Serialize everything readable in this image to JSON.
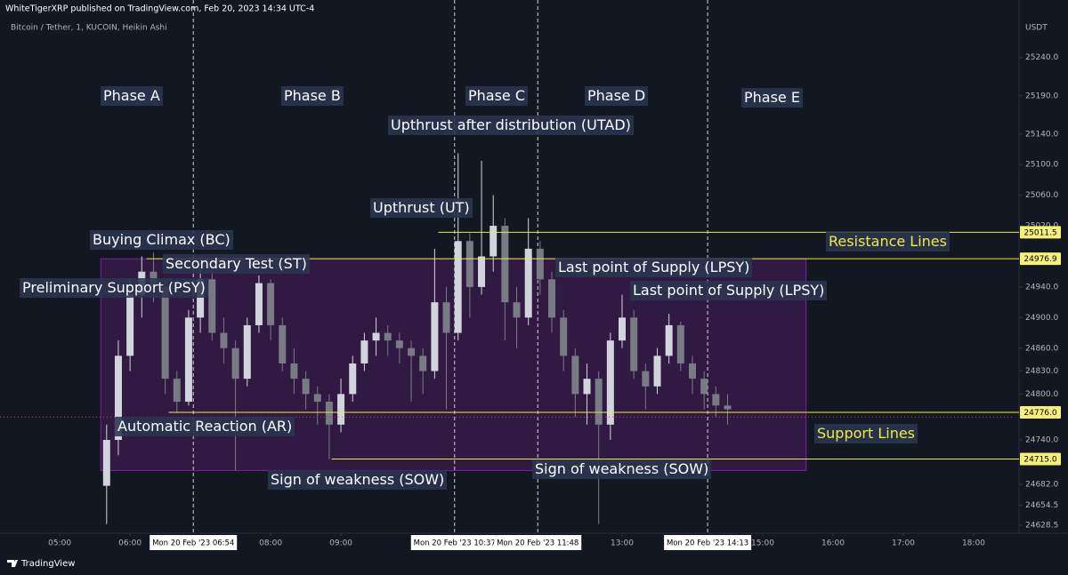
{
  "header": {
    "publisher": "WhiteTigerXRP published on TradingView.com, Feb 20, 2023 14:34 UTC-4",
    "brand": "TradingView"
  },
  "chart_data": {
    "type": "candlestick",
    "title": "Bitcoin / Tether, 1, KUCOIN, Heikin Ashi",
    "y_unit": "USDT",
    "up_color": "#d1d4dc",
    "down_color": "#787b86",
    "x": [
      "05:40",
      "05:50",
      "06:00",
      "06:10",
      "06:20",
      "06:30",
      "06:40",
      "06:50",
      "07:00",
      "07:10",
      "07:20",
      "07:30",
      "07:40",
      "07:50",
      "08:00",
      "08:10",
      "08:20",
      "08:30",
      "08:40",
      "08:50",
      "09:00",
      "09:10",
      "09:20",
      "09:30",
      "09:40",
      "09:50",
      "10:00",
      "10:10",
      "10:20",
      "10:30",
      "10:40",
      "10:50",
      "11:00",
      "11:10",
      "11:20",
      "11:30",
      "11:40",
      "11:50",
      "12:00",
      "12:10",
      "12:20",
      "12:30",
      "12:40",
      "12:50",
      "13:00",
      "13:10",
      "13:20",
      "13:30",
      "13:40",
      "13:50",
      "14:00",
      "14:10",
      "14:20",
      "14:30"
    ],
    "open": [
      24680,
      24740,
      24850,
      24930,
      24960,
      24940,
      24820,
      24790,
      24900,
      24950,
      24880,
      24860,
      24820,
      24890,
      24945,
      24890,
      24840,
      24820,
      24800,
      24790,
      24760,
      24800,
      24840,
      24870,
      24880,
      24870,
      24860,
      24850,
      24830,
      24920,
      24880,
      25000,
      24940,
      24980,
      25020,
      24920,
      24900,
      24990,
      24950,
      24900,
      24850,
      24800,
      24820,
      24760,
      24870,
      24900,
      24830,
      24810,
      24850,
      24890,
      24840,
      24820,
      24800,
      24785
    ],
    "high": [
      24760,
      24870,
      24950,
      24980,
      24985,
      24950,
      24830,
      24910,
      24975,
      24960,
      24900,
      24870,
      24900,
      24955,
      24950,
      24900,
      24860,
      24830,
      24810,
      24800,
      24820,
      24850,
      24880,
      24900,
      24890,
      24880,
      24870,
      24860,
      24990,
      24940,
      25115,
      25010,
      25105,
      25060,
      25030,
      24940,
      25030,
      25000,
      24960,
      24910,
      24860,
      24840,
      24830,
      24880,
      24930,
      24910,
      24840,
      24860,
      24905,
      24895,
      24850,
      24830,
      24810,
      24800
    ],
    "low": [
      24630,
      24720,
      24830,
      24900,
      24920,
      24800,
      24775,
      24785,
      24880,
      24870,
      24840,
      24700,
      24810,
      24880,
      24870,
      24830,
      24800,
      24780,
      24760,
      24715,
      24750,
      24790,
      24830,
      24850,
      24850,
      24840,
      24790,
      24800,
      24820,
      24780,
      24870,
      24900,
      24930,
      24960,
      24870,
      24860,
      24890,
      24930,
      24880,
      24830,
      24770,
      24760,
      24630,
      24740,
      24860,
      24820,
      24780,
      24800,
      24840,
      24830,
      24800,
      24780,
      24770,
      24760
    ],
    "close": [
      24740,
      24850,
      24930,
      24960,
      24940,
      24820,
      24790,
      24900,
      24950,
      24880,
      24860,
      24820,
      24890,
      24945,
      24890,
      24840,
      24820,
      24800,
      24790,
      24760,
      24800,
      24840,
      24870,
      24880,
      24870,
      24860,
      24850,
      24830,
      24920,
      24880,
      25000,
      24940,
      24980,
      25020,
      24920,
      24900,
      24990,
      24950,
      24900,
      24850,
      24800,
      24820,
      24760,
      24870,
      24900,
      24830,
      24810,
      24850,
      24890,
      24840,
      24820,
      24800,
      24785,
      24780
    ],
    "xlim": [
      "04:09",
      "18:35"
    ],
    "xticks": [
      "05:00",
      "06:00",
      "08:00",
      "09:00",
      "13:00",
      "15:00",
      "16:00",
      "17:00",
      "18:00"
    ],
    "ylim": [
      24618,
      25292
    ],
    "yticks": [
      {
        "value": 25240,
        "label": "25240.0"
      },
      {
        "value": 25190,
        "label": "25190.0"
      },
      {
        "value": 25140,
        "label": "25140.0"
      },
      {
        "value": 25100,
        "label": "25100.0"
      },
      {
        "value": 25060,
        "label": "25060.0"
      },
      {
        "value": 25020,
        "label": "25020.0"
      },
      {
        "value": 24940,
        "label": "24940.0"
      },
      {
        "value": 24900,
        "label": "24900.0"
      },
      {
        "value": 24860,
        "label": "24860.0"
      },
      {
        "value": 24830,
        "label": "24830.0"
      },
      {
        "value": 24800,
        "label": "24800.0"
      },
      {
        "value": 24740,
        "label": "24740.0"
      },
      {
        "value": 24682,
        "label": "24682.0"
      },
      24654.5,
      24628.5
    ],
    "levels": [
      {
        "price": 25011.5,
        "start": "10:23"
      },
      {
        "price": 24976.9,
        "start": "06:14"
      },
      {
        "price": {
          "value": 24776,
          "label": "24776.0"
        },
        "start": "06:33"
      },
      {
        "price": {
          "value": 24715,
          "label": "24715.0"
        },
        "start": "08:52"
      }
    ],
    "level_color": "#e8e84a",
    "last_price": 24770,
    "range_box": {
      "start": "05:35",
      "end": "15:37",
      "top": 24976.9,
      "bottom": 24700
    },
    "crosshairs": [
      "Mon 20 Feb '23  06:54",
      "Mon 20 Feb '23  10:37",
      "Mon 20 Feb '23  11:48",
      "Mon 20 Feb '23  14:13"
    ],
    "annotations": [
      "Phase A",
      "Phase B",
      "Phase C",
      "Phase D",
      "Phase E",
      "Upthrust after distribution (UTAD)",
      "Upthrust (UT)",
      "Buying Climax (BC)",
      "Secondary Test (ST)",
      "Preliminary Support (PSY)",
      "Last point of Supply (LPSY)",
      "Last point of Supply (LPSY)",
      "Automatic Reaction (AR)",
      "Sign of weakness (SOW)",
      "Sign of weakness (SOW)",
      "Resistance Lines",
      "Support Lines"
    ]
  }
}
